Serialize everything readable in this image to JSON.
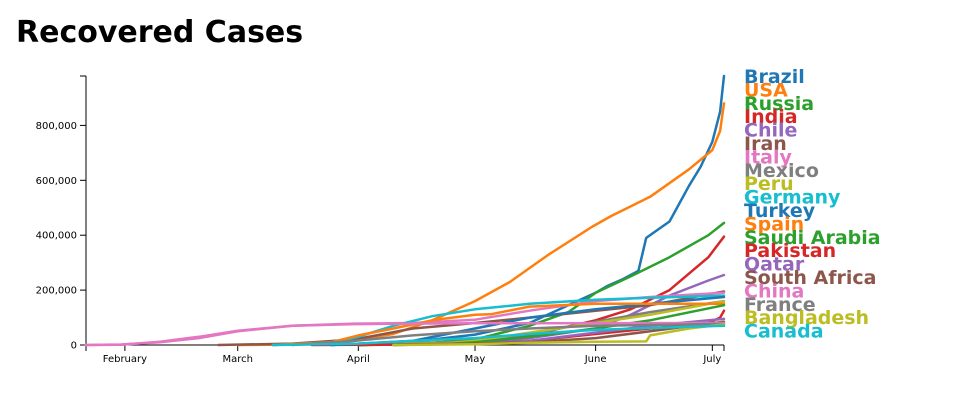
{
  "chart_data": {
    "type": "line",
    "title": "Recovered Cases",
    "xlabel": "",
    "ylabel": "",
    "x_ticks": [
      "February",
      "March",
      "April",
      "May",
      "June",
      "July"
    ],
    "x_tick_dates": [
      "2020-02-01",
      "2020-03-01",
      "2020-04-01",
      "2020-05-01",
      "2020-06-01",
      "2020-07-01"
    ],
    "xlim": [
      "2020-01-22",
      "2020-07-04"
    ],
    "ylim": [
      0,
      980000
    ],
    "y_ticks": [
      0,
      200000,
      400000,
      600000,
      800000
    ],
    "y_tick_labels": [
      "0",
      "200,000",
      "400,000",
      "600,000",
      "800,000"
    ],
    "grid": false,
    "legend_position": "right",
    "series": [
      {
        "name": "Brazil",
        "color": "#1f77b4",
        "points": [
          [
            "2020-03-25",
            0
          ],
          [
            "2020-04-15",
            12000
          ],
          [
            "2020-05-01",
            38000
          ],
          [
            "2020-05-15",
            80000
          ],
          [
            "2020-06-01",
            190000
          ],
          [
            "2020-06-04",
            215000
          ],
          [
            "2020-06-08",
            240000
          ],
          [
            "2020-06-12",
            270000
          ],
          [
            "2020-06-14",
            390000
          ],
          [
            "2020-06-20",
            450000
          ],
          [
            "2020-06-25",
            580000
          ],
          [
            "2020-06-28",
            650000
          ],
          [
            "2020-07-01",
            740000
          ],
          [
            "2020-07-03",
            850000
          ],
          [
            "2020-07-04",
            980000
          ]
        ]
      },
      {
        "name": "USA",
        "color": "#ff7f0e",
        "points": [
          [
            "2020-03-01",
            0
          ],
          [
            "2020-03-25",
            3000
          ],
          [
            "2020-04-10",
            40000
          ],
          [
            "2020-04-20",
            90000
          ],
          [
            "2020-05-01",
            160000
          ],
          [
            "2020-05-10",
            230000
          ],
          [
            "2020-05-20",
            330000
          ],
          [
            "2020-05-31",
            430000
          ],
          [
            "2020-06-05",
            470000
          ],
          [
            "2020-06-15",
            540000
          ],
          [
            "2020-06-25",
            640000
          ],
          [
            "2020-07-01",
            710000
          ],
          [
            "2020-07-03",
            780000
          ],
          [
            "2020-07-04",
            880000
          ]
        ]
      },
      {
        "name": "Russia",
        "color": "#2ca02c",
        "points": [
          [
            "2020-04-01",
            0
          ],
          [
            "2020-04-20",
            8000
          ],
          [
            "2020-05-01",
            20000
          ],
          [
            "2020-05-15",
            70000
          ],
          [
            "2020-05-25",
            120000
          ],
          [
            "2020-06-01",
            190000
          ],
          [
            "2020-06-10",
            250000
          ],
          [
            "2020-06-20",
            320000
          ],
          [
            "2020-06-30",
            400000
          ],
          [
            "2020-07-04",
            445000
          ]
        ]
      },
      {
        "name": "India",
        "color": "#d62728",
        "points": [
          [
            "2020-03-20",
            0
          ],
          [
            "2020-04-15",
            2000
          ],
          [
            "2020-05-01",
            10000
          ],
          [
            "2020-05-15",
            35000
          ],
          [
            "2020-06-01",
            90000
          ],
          [
            "2020-06-10",
            130000
          ],
          [
            "2020-06-20",
            200000
          ],
          [
            "2020-06-30",
            320000
          ],
          [
            "2020-07-04",
            395000
          ]
        ]
      },
      {
        "name": "Chile",
        "color": "#9467bd",
        "points": [
          [
            "2020-04-01",
            0
          ],
          [
            "2020-05-01",
            8000
          ],
          [
            "2020-05-15",
            25000
          ],
          [
            "2020-06-01",
            60000
          ],
          [
            "2020-06-10",
            110000
          ],
          [
            "2020-06-20",
            180000
          ],
          [
            "2020-06-30",
            235000
          ],
          [
            "2020-07-04",
            255000
          ]
        ]
      },
      {
        "name": "Iran",
        "color": "#8c564b",
        "points": [
          [
            "2020-02-25",
            0
          ],
          [
            "2020-03-15",
            5000
          ],
          [
            "2020-03-31",
            20000
          ],
          [
            "2020-04-15",
            60000
          ],
          [
            "2020-05-01",
            80000
          ],
          [
            "2020-05-15",
            100000
          ],
          [
            "2020-06-01",
            125000
          ],
          [
            "2020-06-15",
            145000
          ],
          [
            "2020-07-04",
            195000
          ]
        ]
      },
      {
        "name": "Italy",
        "color": "#e377c2",
        "points": [
          [
            "2020-01-22",
            0
          ],
          [
            "2020-01-31",
            2000
          ],
          [
            "2020-02-10",
            10000
          ],
          [
            "2020-02-20",
            25000
          ],
          [
            "2020-03-01",
            50000
          ],
          [
            "2020-03-15",
            70000
          ],
          [
            "2020-03-31",
            78000
          ],
          [
            "2020-04-15",
            80000
          ],
          [
            "2020-05-01",
            92000
          ],
          [
            "2020-05-15",
            125000
          ],
          [
            "2020-06-01",
            160000
          ],
          [
            "2020-06-15",
            175000
          ],
          [
            "2020-07-04",
            190000
          ]
        ]
      },
      {
        "name": "Mexico",
        "color": "#7f7f7f",
        "points": [
          [
            "2020-04-01",
            0
          ],
          [
            "2020-04-25",
            10000
          ],
          [
            "2020-05-01",
            15000
          ],
          [
            "2020-05-15",
            40000
          ],
          [
            "2020-06-01",
            85000
          ],
          [
            "2020-06-15",
            120000
          ],
          [
            "2020-07-04",
            160000
          ]
        ]
      },
      {
        "name": "Peru",
        "color": "#bcbd22",
        "points": [
          [
            "2020-04-01",
            0
          ],
          [
            "2020-04-25",
            8000
          ],
          [
            "2020-05-01",
            15000
          ],
          [
            "2020-05-15",
            45000
          ],
          [
            "2020-06-01",
            80000
          ],
          [
            "2020-06-15",
            110000
          ],
          [
            "2020-07-04",
            160000
          ]
        ]
      },
      {
        "name": "Germany",
        "color": "#17becf",
        "points": [
          [
            "2020-03-10",
            0
          ],
          [
            "2020-03-25",
            8000
          ],
          [
            "2020-04-01",
            30000
          ],
          [
            "2020-04-10",
            70000
          ],
          [
            "2020-04-20",
            105000
          ],
          [
            "2020-05-01",
            130000
          ],
          [
            "2020-05-15",
            150000
          ],
          [
            "2020-06-01",
            165000
          ],
          [
            "2020-06-15",
            172000
          ],
          [
            "2020-07-04",
            180000
          ]
        ]
      },
      {
        "name": "Turkey",
        "color": "#1f77b4",
        "points": [
          [
            "2020-03-25",
            0
          ],
          [
            "2020-04-15",
            15000
          ],
          [
            "2020-05-01",
            60000
          ],
          [
            "2020-05-15",
            100000
          ],
          [
            "2020-06-01",
            130000
          ],
          [
            "2020-06-15",
            150000
          ],
          [
            "2020-07-04",
            175000
          ]
        ]
      },
      {
        "name": "Spain",
        "color": "#ff7f0e",
        "points": [
          [
            "2020-03-10",
            0
          ],
          [
            "2020-03-25",
            10000
          ],
          [
            "2020-04-01",
            35000
          ],
          [
            "2020-04-10",
            60000
          ],
          [
            "2020-04-20",
            90000
          ],
          [
            "2020-05-01",
            110000
          ],
          [
            "2020-05-05",
            112000
          ],
          [
            "2020-05-15",
            140000
          ],
          [
            "2020-06-01",
            150000
          ],
          [
            "2020-06-15",
            150000
          ],
          [
            "2020-07-04",
            150000
          ]
        ]
      },
      {
        "name": "Saudi Arabia",
        "color": "#2ca02c",
        "points": [
          [
            "2020-04-01",
            0
          ],
          [
            "2020-04-25",
            5000
          ],
          [
            "2020-05-01",
            10000
          ],
          [
            "2020-05-15",
            30000
          ],
          [
            "2020-06-01",
            60000
          ],
          [
            "2020-06-15",
            90000
          ],
          [
            "2020-07-04",
            145000
          ]
        ]
      },
      {
        "name": "Pakistan",
        "color": "#d62728",
        "points": [
          [
            "2020-04-01",
            0
          ],
          [
            "2020-05-01",
            5000
          ],
          [
            "2020-05-15",
            15000
          ],
          [
            "2020-06-01",
            40000
          ],
          [
            "2020-06-15",
            60000
          ],
          [
            "2020-06-30",
            80000
          ],
          [
            "2020-07-03",
            100000
          ],
          [
            "2020-07-04",
            125000
          ]
        ]
      },
      {
        "name": "Qatar",
        "color": "#9467bd",
        "points": [
          [
            "2020-04-10",
            0
          ],
          [
            "2020-05-01",
            5000
          ],
          [
            "2020-05-15",
            15000
          ],
          [
            "2020-06-01",
            45000
          ],
          [
            "2020-06-15",
            70000
          ],
          [
            "2020-07-04",
            95000
          ]
        ]
      },
      {
        "name": "South Africa",
        "color": "#8c564b",
        "points": [
          [
            "2020-04-10",
            0
          ],
          [
            "2020-05-01",
            5000
          ],
          [
            "2020-05-15",
            10000
          ],
          [
            "2020-06-01",
            25000
          ],
          [
            "2020-06-15",
            50000
          ],
          [
            "2020-07-04",
            85000
          ]
        ]
      },
      {
        "name": "China",
        "color": "#e377c2",
        "points": [
          [
            "2020-01-22",
            0
          ],
          [
            "2020-01-31",
            1000
          ],
          [
            "2020-02-10",
            12000
          ],
          [
            "2020-02-20",
            30000
          ],
          [
            "2020-03-01",
            52000
          ],
          [
            "2020-03-15",
            70000
          ],
          [
            "2020-03-31",
            76000
          ],
          [
            "2020-04-15",
            78000
          ],
          [
            "2020-05-01",
            79000
          ],
          [
            "2020-07-04",
            80000
          ]
        ]
      },
      {
        "name": "France",
        "color": "#7f7f7f",
        "points": [
          [
            "2020-03-15",
            0
          ],
          [
            "2020-03-31",
            15000
          ],
          [
            "2020-04-15",
            35000
          ],
          [
            "2020-05-01",
            50000
          ],
          [
            "2020-05-15",
            60000
          ],
          [
            "2020-06-01",
            70000
          ],
          [
            "2020-06-15",
            73000
          ],
          [
            "2020-07-04",
            77000
          ]
        ]
      },
      {
        "name": "Bangladesh",
        "color": "#bcbd22",
        "points": [
          [
            "2020-04-10",
            0
          ],
          [
            "2020-05-01",
            3000
          ],
          [
            "2020-05-15",
            8000
          ],
          [
            "2020-06-01",
            12000
          ],
          [
            "2020-06-14",
            13000
          ],
          [
            "2020-06-15",
            35000
          ],
          [
            "2020-06-25",
            60000
          ],
          [
            "2020-07-04",
            75000
          ]
        ]
      },
      {
        "name": "Canada",
        "color": "#17becf",
        "points": [
          [
            "2020-03-10",
            0
          ],
          [
            "2020-04-01",
            5000
          ],
          [
            "2020-04-15",
            15000
          ],
          [
            "2020-05-01",
            25000
          ],
          [
            "2020-05-15",
            40000
          ],
          [
            "2020-06-01",
            55000
          ],
          [
            "2020-06-15",
            62000
          ],
          [
            "2020-07-04",
            70000
          ]
        ]
      }
    ]
  }
}
